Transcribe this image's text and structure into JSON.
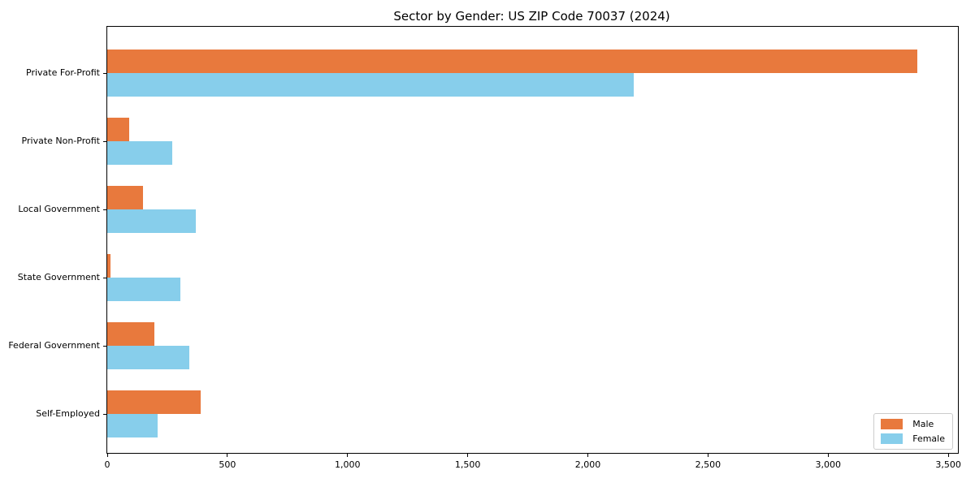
{
  "figure": {
    "title": "Sector by Gender: US ZIP Code 70037 (2024)"
  },
  "colors": {
    "male": "#E8793D",
    "female": "#87CEEB",
    "axis": "#000000",
    "legend_border": "#CCCCCC",
    "background": "#FFFFFF"
  },
  "chart_data": {
    "type": "bar",
    "orientation": "horizontal",
    "title": "Sector by Gender: US ZIP Code 70037 (2024)",
    "categories": [
      "Private For-Profit",
      "Private Non-Profit",
      "Local Government",
      "State Government",
      "Federal Government",
      "Self-Employed"
    ],
    "series": [
      {
        "name": "Male",
        "color": "#E8793D",
        "values": [
          3370,
          90,
          150,
          15,
          195,
          390
        ]
      },
      {
        "name": "Female",
        "color": "#87CEEB",
        "values": [
          2190,
          270,
          370,
          305,
          340,
          210
        ]
      }
    ],
    "xlabel": "",
    "ylabel": "",
    "xlim": [
      0,
      3540
    ],
    "xticks": [
      0,
      500,
      1000,
      1500,
      2000,
      2500,
      3000,
      3500
    ],
    "xtick_labels": [
      "0",
      "500",
      "1,000",
      "1,500",
      "2,000",
      "2,500",
      "3,000",
      "3,500"
    ],
    "grid": false,
    "legend": {
      "position": "lower-right",
      "entries": [
        "Male",
        "Female"
      ]
    }
  }
}
